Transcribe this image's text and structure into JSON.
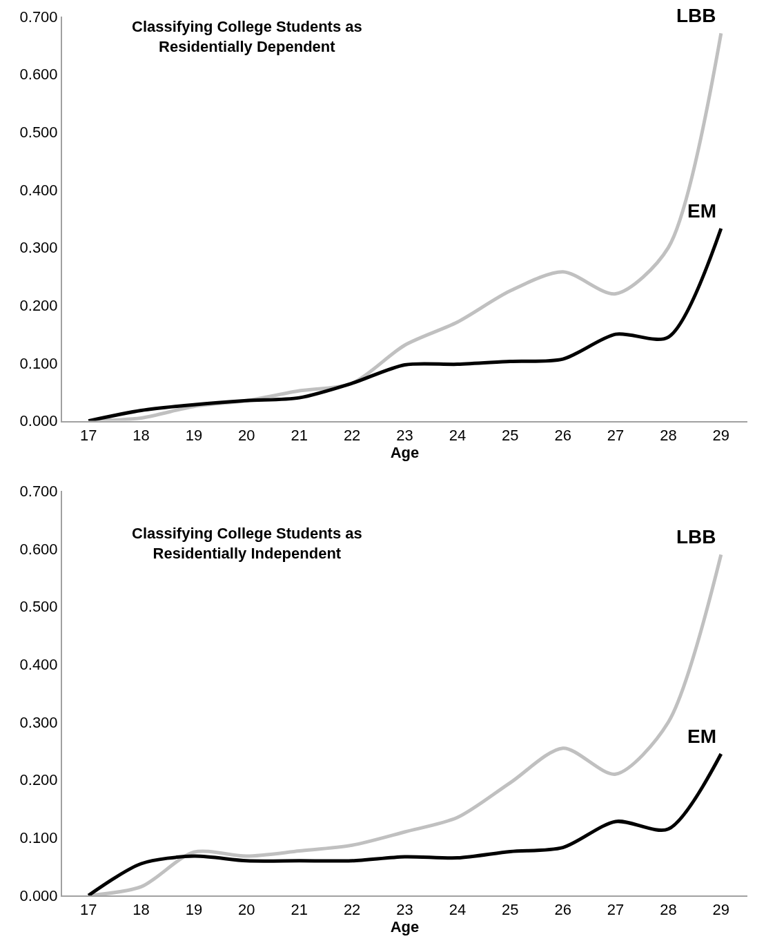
{
  "chart_data": [
    {
      "type": "line",
      "title": "Classifying College Students as\nResidentially Dependent",
      "xlabel": "Age",
      "x": [
        17,
        18,
        19,
        20,
        21,
        22,
        23,
        24,
        25,
        26,
        27,
        28,
        29
      ],
      "series": [
        {
          "name": "LBB",
          "color": "#c0c0c0",
          "values": [
            0.0,
            0.005,
            0.025,
            0.035,
            0.052,
            0.065,
            0.131,
            0.171,
            0.225,
            0.258,
            0.22,
            0.3,
            0.671
          ]
        },
        {
          "name": "EM",
          "color": "#000000",
          "values": [
            0.0,
            0.018,
            0.028,
            0.035,
            0.04,
            0.065,
            0.097,
            0.098,
            0.103,
            0.107,
            0.15,
            0.145,
            0.333
          ]
        }
      ],
      "xlim": [
        16.5,
        29.5
      ],
      "xticks": [
        17,
        18,
        19,
        20,
        21,
        22,
        23,
        24,
        25,
        26,
        27,
        28,
        29
      ],
      "ylim": [
        0,
        0.7
      ],
      "yticks": [
        {
          "value": 0,
          "label": "0.000"
        },
        {
          "value": 0.1,
          "label": "0.100"
        },
        {
          "value": 0.2,
          "label": "0.200"
        },
        {
          "value": 0.3,
          "label": "0.300"
        },
        {
          "value": 0.4,
          "label": "0.400"
        },
        {
          "value": 0.5,
          "label": "0.500"
        },
        {
          "value": 0.6,
          "label": "0.600"
        },
        {
          "value": 0.7,
          "label": "0.700"
        }
      ],
      "legend": false,
      "marker": "none",
      "line_style": "solid"
    },
    {
      "type": "line",
      "title": "Classifying College Students as\nResidentially Independent",
      "xlabel": "Age",
      "x": [
        17,
        18,
        19,
        20,
        21,
        22,
        23,
        24,
        25,
        26,
        27,
        28,
        29
      ],
      "series": [
        {
          "name": "LBB",
          "color": "#c0c0c0",
          "values": [
            0.0,
            0.015,
            0.075,
            0.068,
            0.077,
            0.087,
            0.11,
            0.135,
            0.195,
            0.255,
            0.21,
            0.3,
            0.59
          ]
        },
        {
          "name": "EM",
          "color": "#000000",
          "values": [
            0.0,
            0.055,
            0.068,
            0.06,
            0.06,
            0.06,
            0.067,
            0.065,
            0.076,
            0.083,
            0.128,
            0.115,
            0.245
          ]
        }
      ],
      "xlim": [
        16.5,
        29.5
      ],
      "xticks": [
        17,
        18,
        19,
        20,
        21,
        22,
        23,
        24,
        25,
        26,
        27,
        28,
        29
      ],
      "ylim": [
        0,
        0.7
      ],
      "yticks": [
        {
          "value": 0,
          "label": "0.000"
        },
        {
          "value": 0.1,
          "label": "0.100"
        },
        {
          "value": 0.2,
          "label": "0.200"
        },
        {
          "value": 0.3,
          "label": "0.300"
        },
        {
          "value": 0.4,
          "label": "0.400"
        },
        {
          "value": 0.5,
          "label": "0.500"
        },
        {
          "value": 0.6,
          "label": "0.600"
        },
        {
          "value": 0.7,
          "label": "0.700"
        }
      ],
      "legend": false,
      "marker": "none",
      "line_style": "solid"
    }
  ]
}
